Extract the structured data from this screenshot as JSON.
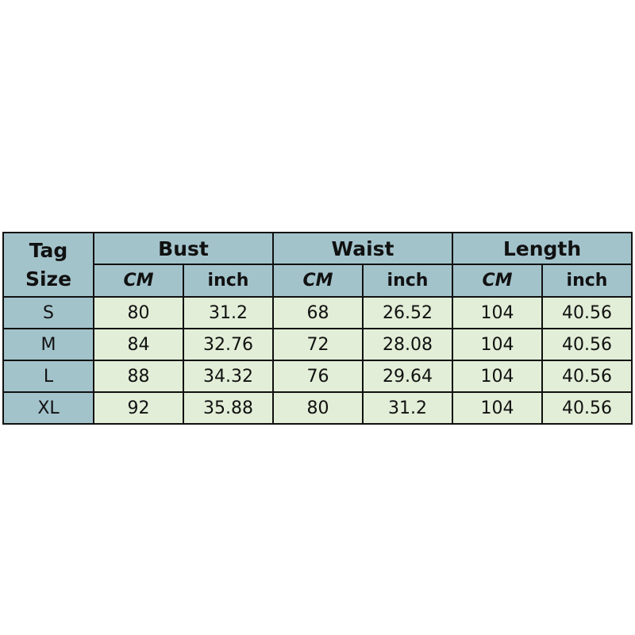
{
  "table": {
    "tag_header": [
      "Tag",
      "Size"
    ],
    "groups": [
      "Bust",
      "Waist",
      "Length"
    ],
    "units": [
      "CM",
      "inch",
      "CM",
      "inch",
      "CM",
      "inch"
    ],
    "colors": {
      "header": "#a3c3cb",
      "cell": "#e2eed7",
      "border": "#111111"
    },
    "rows": [
      [
        "S",
        "80",
        "31.2",
        "68",
        "26.52",
        "104",
        "40.56"
      ],
      [
        "M",
        "84",
        "32.76",
        "72",
        "28.08",
        "104",
        "40.56"
      ],
      [
        "L",
        "88",
        "34.32",
        "76",
        "29.64",
        "104",
        "40.56"
      ],
      [
        "XL",
        "92",
        "35.88",
        "80",
        "31.2",
        "104",
        "40.56"
      ]
    ]
  }
}
